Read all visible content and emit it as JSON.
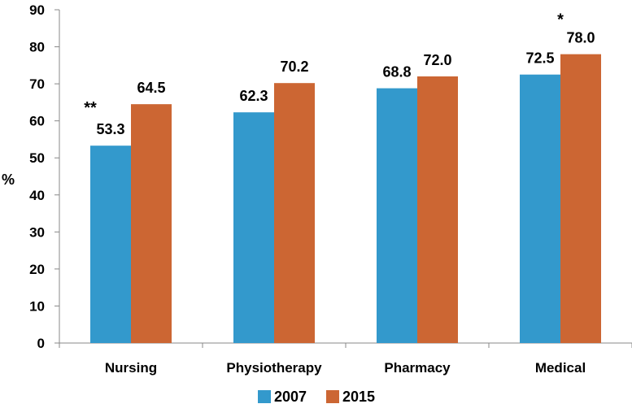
{
  "chart_data": {
    "type": "bar",
    "ylabel": "%",
    "ylim": [
      0,
      90
    ],
    "yticks": [
      0,
      10,
      20,
      30,
      40,
      50,
      60,
      70,
      80,
      90
    ],
    "categories": [
      "Nursing",
      "Physiotherapy",
      "Pharmacy",
      "Medical"
    ],
    "series": [
      {
        "name": "2007",
        "color": "#3399CC",
        "values": [
          53.3,
          62.3,
          68.8,
          72.5
        ],
        "labels": [
          "53.3",
          "62.3",
          "68.8",
          "72.5"
        ]
      },
      {
        "name": "2015",
        "color": "#CC6633",
        "values": [
          64.5,
          70.2,
          72.0,
          78.0
        ],
        "labels": [
          "64.5",
          "70.2",
          "72.0",
          "78.0"
        ]
      }
    ],
    "annotations": [
      {
        "category": "Nursing",
        "text": "**"
      },
      {
        "category": "Medical",
        "text": "*"
      }
    ],
    "legend": "bottom",
    "grid": false
  }
}
